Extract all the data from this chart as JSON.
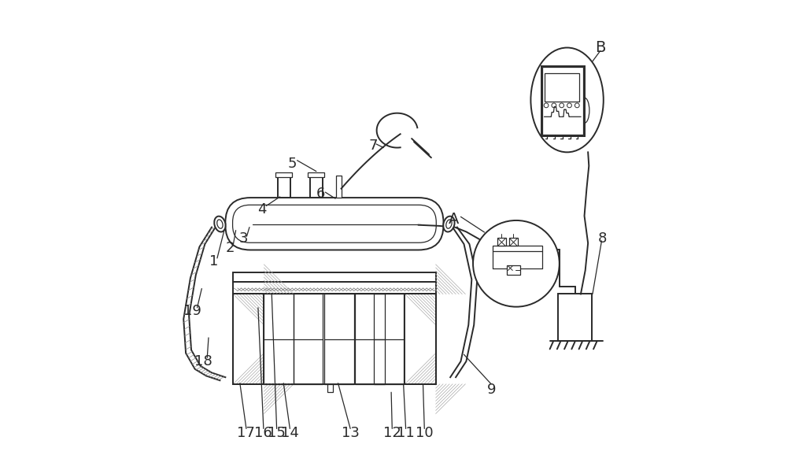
{
  "bg_color": "#ffffff",
  "line_color": "#2a2a2a",
  "lw": 1.4,
  "thin_lw": 0.9,
  "fig_width": 10.0,
  "fig_height": 5.83
}
